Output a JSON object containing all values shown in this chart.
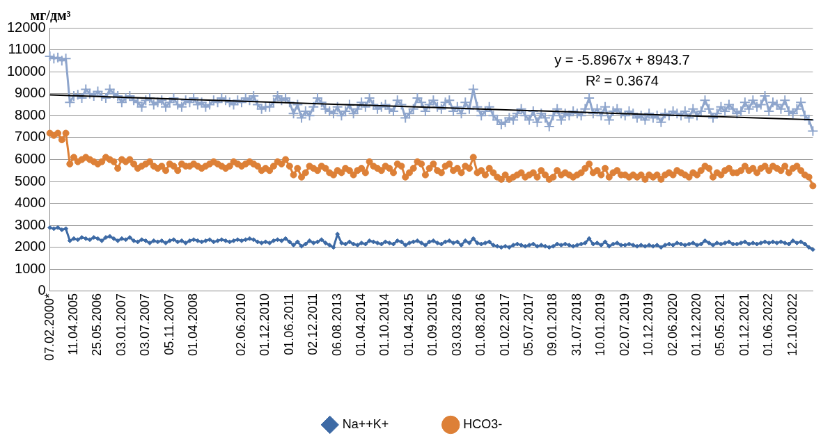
{
  "chart_data": {
    "type": "line",
    "ylabel": "мг/дм³",
    "annotations": [
      "y = -5.8967x + 8943.7",
      "R² = 0.3674"
    ],
    "categories": [
      "07.02.2000*",
      null,
      null,
      null,
      null,
      null,
      "11.04.2005",
      null,
      null,
      null,
      null,
      null,
      "25.05.2006",
      null,
      null,
      null,
      null,
      null,
      "03.01.2007",
      null,
      null,
      null,
      null,
      null,
      "03.07.2007",
      null,
      null,
      null,
      null,
      null,
      "05.11.2007",
      null,
      null,
      null,
      null,
      null,
      "01.04.2008",
      null,
      null,
      null,
      null,
      null,
      null,
      null,
      null,
      null,
      null,
      null,
      "02.06.2010",
      null,
      null,
      null,
      null,
      null,
      "01.12.2010",
      null,
      null,
      null,
      null,
      null,
      "01.06.2011",
      null,
      null,
      null,
      null,
      null,
      "02.12.2011",
      null,
      null,
      null,
      null,
      null,
      "06.08.2013",
      null,
      null,
      null,
      null,
      null,
      "01.04.2014",
      null,
      null,
      null,
      null,
      null,
      "01.10.2014",
      null,
      null,
      null,
      null,
      null,
      "01.04.2015",
      null,
      null,
      null,
      null,
      null,
      "01.09.2015",
      null,
      null,
      null,
      null,
      null,
      "03.03.2016",
      null,
      null,
      null,
      null,
      null,
      "01.08.2016",
      null,
      null,
      null,
      null,
      null,
      "01.02.2017",
      null,
      null,
      null,
      null,
      null,
      "05.07.2017",
      null,
      null,
      null,
      null,
      null,
      "09.01.2018",
      null,
      null,
      null,
      null,
      null,
      "31.07.2018",
      null,
      null,
      null,
      null,
      null,
      "10.01.2019",
      null,
      null,
      null,
      null,
      null,
      "02.07.2019",
      null,
      null,
      null,
      null,
      null,
      "10.12.2019",
      null,
      null,
      null,
      null,
      null,
      "02.06.2020",
      null,
      null,
      null,
      null,
      null,
      "01.12.2020",
      null,
      null,
      null,
      null,
      null,
      "05.05.2021",
      null,
      null,
      null,
      null,
      null,
      "01.12.2021",
      null,
      null,
      null,
      null,
      null,
      "01.06.2022",
      null,
      null,
      null,
      null,
      null,
      "12.10.2022",
      null,
      null,
      null,
      null,
      null
    ],
    "series": [
      {
        "color": "#8ea5cc",
        "marker": "cross",
        "values": [
          10700,
          10600,
          10650,
          10500,
          10600,
          8600,
          8900,
          8950,
          8800,
          9200,
          9000,
          8900,
          9100,
          8900,
          8800,
          9200,
          9000,
          8900,
          8600,
          8800,
          8900,
          8700,
          8600,
          8400,
          8700,
          8800,
          8500,
          8600,
          8700,
          8400,
          8600,
          8800,
          8500,
          8400,
          8700,
          8600,
          8800,
          8500,
          8600,
          8400,
          8500,
          8700,
          8600,
          8800,
          8700,
          8600,
          8500,
          8700,
          8600,
          8800,
          8700,
          8900,
          8500,
          8300,
          8400,
          8400,
          8600,
          8900,
          8700,
          8800,
          8600,
          8100,
          8500,
          7900,
          8200,
          8000,
          8400,
          8800,
          8600,
          8300,
          8200,
          8100,
          8400,
          8000,
          8200,
          8500,
          8100,
          8300,
          8600,
          8400,
          8800,
          8500,
          8300,
          8400,
          8500,
          8300,
          8200,
          8700,
          8500,
          7900,
          8100,
          8300,
          8800,
          8600,
          8200,
          8500,
          8700,
          8400,
          8300,
          8600,
          8700,
          8200,
          8400,
          8100,
          8600,
          8300,
          9200,
          8400,
          8000,
          8200,
          8400,
          8000,
          7800,
          7600,
          7700,
          7900,
          7800,
          8100,
          8300,
          8000,
          7800,
          8200,
          7700,
          8100,
          7900,
          7500,
          8000,
          8300,
          7800,
          8100,
          8000,
          8200,
          8100,
          8000,
          8300,
          8800,
          8100,
          8300,
          8000,
          8400,
          7800,
          8200,
          8300,
          8100,
          8000,
          8200,
          8100,
          7900,
          8000,
          7800,
          8100,
          7900,
          8000,
          7700,
          8100,
          8000,
          8200,
          8100,
          8000,
          8200,
          7900,
          8300,
          8000,
          8200,
          8700,
          8300,
          7900,
          8100,
          8400,
          8200,
          8500,
          8300,
          8100,
          8200,
          8600,
          8300,
          8700,
          8400,
          8500,
          8900,
          8200,
          8600,
          8500,
          8300,
          8700,
          8200,
          8100,
          8300,
          8600,
          8000,
          7800,
          7300
        ]
      },
      {
        "name": "Na++K+",
        "color": "#3d6aa5",
        "marker": "diamond",
        "values": [
          2900,
          2850,
          2900,
          2800,
          2850,
          2300,
          2400,
          2350,
          2450,
          2400,
          2350,
          2450,
          2400,
          2300,
          2450,
          2500,
          2400,
          2300,
          2400,
          2350,
          2450,
          2300,
          2250,
          2350,
          2300,
          2200,
          2300,
          2250,
          2300,
          2200,
          2300,
          2350,
          2250,
          2300,
          2200,
          2300,
          2350,
          2300,
          2250,
          2300,
          2350,
          2250,
          2300,
          2350,
          2300,
          2250,
          2300,
          2350,
          2300,
          2350,
          2400,
          2350,
          2250,
          2200,
          2250,
          2200,
          2300,
          2350,
          2300,
          2400,
          2250,
          2100,
          2250,
          2050,
          2150,
          2300,
          2200,
          2250,
          2350,
          2200,
          2100,
          2000,
          2600,
          2200,
          2150,
          2250,
          2150,
          2100,
          2200,
          2150,
          2300,
          2250,
          2200,
          2150,
          2250,
          2200,
          2150,
          2300,
          2250,
          2100,
          2200,
          2250,
          2300,
          2200,
          2100,
          2250,
          2300,
          2200,
          2150,
          2250,
          2300,
          2200,
          2250,
          2100,
          2300,
          2200,
          2400,
          2200,
          2150,
          2200,
          2250,
          2100,
          2050,
          2000,
          2050,
          2000,
          2100,
          2150,
          2100,
          2050,
          2100,
          2150,
          2050,
          2100,
          2050,
          2000,
          2050,
          2150,
          2100,
          2150,
          2100,
          2050,
          2100,
          2150,
          2200,
          2400,
          2150,
          2200,
          2100,
          2250,
          2050,
          2150,
          2200,
          2100,
          2100,
          2150,
          2100,
          2050,
          2100,
          2050,
          2100,
          2050,
          2100,
          2000,
          2100,
          2150,
          2100,
          2200,
          2150,
          2100,
          2150,
          2200,
          2100,
          2150,
          2300,
          2200,
          2100,
          2200,
          2150,
          2200,
          2250,
          2150,
          2150,
          2200,
          2250,
          2150,
          2200,
          2150,
          2200,
          2250,
          2200,
          2250,
          2200,
          2250,
          2200,
          2150,
          2300,
          2200,
          2250,
          2150,
          2000,
          1900
        ]
      },
      {
        "name": "HCO3-",
        "color": "#dd8037",
        "marker": "circle",
        "values": [
          7200,
          7100,
          7200,
          6900,
          7200,
          5800,
          6100,
          5900,
          6000,
          6100,
          6000,
          5900,
          5800,
          5900,
          6100,
          6000,
          5900,
          5600,
          6000,
          5900,
          6000,
          5800,
          5600,
          5700,
          5800,
          5900,
          5700,
          5600,
          5700,
          5500,
          5800,
          5700,
          5500,
          5800,
          5700,
          5700,
          5800,
          5700,
          5600,
          5700,
          5800,
          5900,
          5800,
          5700,
          5600,
          5700,
          5900,
          5800,
          5700,
          5800,
          5900,
          5800,
          5700,
          5500,
          5600,
          5500,
          5700,
          5900,
          5800,
          6000,
          5700,
          5300,
          5600,
          5200,
          5400,
          5700,
          5600,
          5500,
          5700,
          5600,
          5400,
          5300,
          5500,
          5400,
          5600,
          5500,
          5300,
          5500,
          5600,
          5400,
          5900,
          5700,
          5600,
          5500,
          5700,
          5600,
          5400,
          5800,
          5700,
          5200,
          5400,
          5600,
          5900,
          5800,
          5300,
          5600,
          5800,
          5500,
          5400,
          5700,
          5800,
          5500,
          5600,
          5400,
          5700,
          5600,
          6100,
          5400,
          5500,
          5300,
          5600,
          5400,
          5200,
          5100,
          5300,
          5100,
          5200,
          5300,
          5400,
          5200,
          5300,
          5400,
          5200,
          5500,
          5300,
          5100,
          5200,
          5500,
          5300,
          5400,
          5300,
          5200,
          5300,
          5400,
          5600,
          5800,
          5400,
          5500,
          5300,
          5600,
          5200,
          5400,
          5500,
          5300,
          5300,
          5200,
          5300,
          5200,
          5300,
          5100,
          5300,
          5200,
          5300,
          5100,
          5300,
          5400,
          5300,
          5500,
          5400,
          5300,
          5200,
          5400,
          5300,
          5500,
          5700,
          5600,
          5200,
          5400,
          5300,
          5500,
          5600,
          5400,
          5400,
          5500,
          5700,
          5500,
          5600,
          5400,
          5600,
          5700,
          5500,
          5700,
          5600,
          5500,
          5700,
          5400,
          5600,
          5700,
          5500,
          5300,
          5200,
          4800
        ]
      },
      {
        "type": "line",
        "color": "#000000",
        "marker": "none",
        "values": [
          8940,
          null,
          null,
          null,
          null,
          null,
          null,
          null,
          null,
          null,
          null,
          null,
          null,
          null,
          null,
          null,
          null,
          null,
          null,
          null,
          null,
          null,
          null,
          null,
          null,
          null,
          null,
          null,
          null,
          null,
          null,
          null,
          null,
          null,
          null,
          null,
          null,
          null,
          null,
          null,
          null,
          null,
          null,
          null,
          null,
          null,
          null,
          null,
          null,
          null,
          null,
          null,
          null,
          null,
          null,
          null,
          null,
          null,
          null,
          null,
          null,
          null,
          null,
          null,
          null,
          null,
          null,
          null,
          null,
          null,
          null,
          null,
          null,
          null,
          null,
          null,
          null,
          null,
          null,
          null,
          null,
          null,
          null,
          null,
          null,
          null,
          null,
          null,
          null,
          null,
          null,
          null,
          null,
          null,
          null,
          null,
          null,
          null,
          null,
          null,
          null,
          null,
          null,
          null,
          null,
          null,
          null,
          null,
          null,
          null,
          null,
          null,
          null,
          null,
          null,
          null,
          null,
          null,
          null,
          null,
          null,
          null,
          null,
          null,
          null,
          null,
          null,
          null,
          null,
          null,
          null,
          null,
          null,
          null,
          null,
          null,
          null,
          null,
          null,
          null,
          null,
          null,
          null,
          null,
          null,
          null,
          null,
          null,
          null,
          null,
          null,
          null,
          null,
          null,
          null,
          null,
          null,
          null,
          null,
          null,
          null,
          null,
          null,
          null,
          null,
          null,
          null,
          null,
          null,
          null,
          null,
          null,
          null,
          null,
          null,
          null,
          null,
          null,
          null,
          null,
          null,
          null,
          null,
          null,
          null,
          null,
          null,
          null,
          null,
          null,
          null,
          7810
        ]
      }
    ],
    "ylim": [
      0,
      12000
    ],
    "yticks": [
      0,
      1000,
      2000,
      3000,
      4000,
      5000,
      6000,
      7000,
      8000,
      9000,
      10000,
      11000,
      12000
    ],
    "grid": "y",
    "legend": "bottom"
  }
}
